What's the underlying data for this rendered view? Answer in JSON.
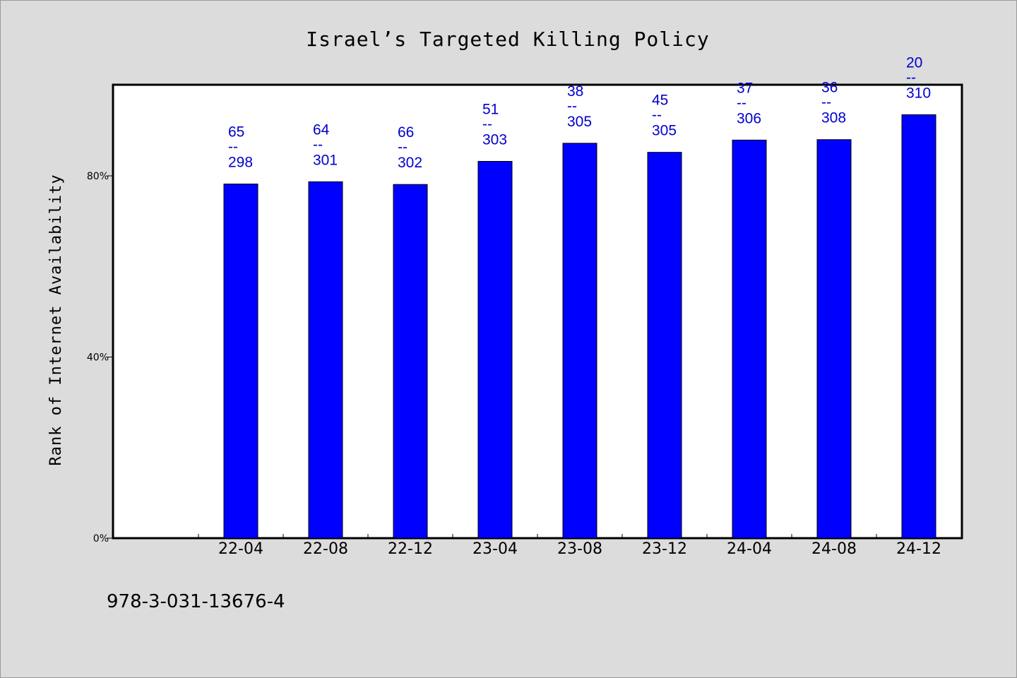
{
  "chart_data": {
    "type": "bar",
    "title": "Israel’s Targeted Killing Policy",
    "xlabel": "",
    "ylabel": "Rank of Internet Availability",
    "categories": [
      "22-04",
      "22-08",
      "22-12",
      "23-04",
      "23-08",
      "23-12",
      "24-04",
      "24-08",
      "24-12"
    ],
    "values": [
      78.2,
      78.7,
      78.1,
      83.2,
      87.2,
      85.2,
      87.9,
      88.0,
      93.5
    ],
    "data_labels": [
      {
        "rank": "65",
        "sep": "--",
        "total": "298"
      },
      {
        "rank": "64",
        "sep": "--",
        "total": "301"
      },
      {
        "rank": "66",
        "sep": "--",
        "total": "302"
      },
      {
        "rank": "51",
        "sep": "--",
        "total": "303"
      },
      {
        "rank": "38",
        "sep": "--",
        "total": "305"
      },
      {
        "rank": "45",
        "sep": "--",
        "total": "305"
      },
      {
        "rank": "37",
        "sep": "--",
        "total": "306"
      },
      {
        "rank": "36",
        "sep": "--",
        "total": "308"
      },
      {
        "rank": "20",
        "sep": "--",
        "total": "310"
      }
    ],
    "yticks": [
      {
        "value": 0,
        "label": "0%"
      },
      {
        "value": 40,
        "label": "40%"
      },
      {
        "value": 80,
        "label": "80%"
      }
    ],
    "ylim": [
      0,
      100
    ],
    "grid": false,
    "legend": "none",
    "colors": {
      "bar": "#0000ff",
      "data_label": "#0000cc",
      "plot_background": "#ffffff",
      "page_background": "#dcdcdc"
    }
  },
  "footer": {
    "isbn": "978-3-031-13676-4"
  }
}
